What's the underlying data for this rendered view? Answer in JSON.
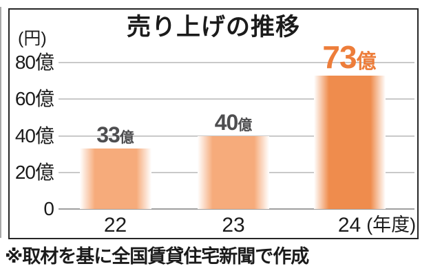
{
  "chart_data": {
    "type": "bar",
    "title": "売り上げの推移",
    "unit_label": "(円)",
    "categories": [
      "22",
      "23",
      "24"
    ],
    "values": [
      33,
      40,
      73
    ],
    "value_unit": "億",
    "x_axis_suffix": "(年度)",
    "y_ticks": [
      {
        "value": 0,
        "label": "0"
      },
      {
        "value": 20,
        "label": "20億"
      },
      {
        "value": 40,
        "label": "40億"
      },
      {
        "value": 60,
        "label": "60億"
      },
      {
        "value": 80,
        "label": "80億"
      }
    ],
    "ylim": [
      0,
      85
    ],
    "grid": true,
    "legend": "none",
    "emphasized_index": 2,
    "footnote": "※取材を基に全国賃貸住宅新聞で作成",
    "colors": {
      "bar": "#F6AB7B",
      "bar_emphasis": "#EF8C4D",
      "value_label": "#4E4E50",
      "value_label_emphasis": "#ED7D3A",
      "gridline": "#C9C9C9",
      "axis_line": "#9E9E9E",
      "frame_border": "#262626",
      "text": "#1B1B1B"
    }
  }
}
